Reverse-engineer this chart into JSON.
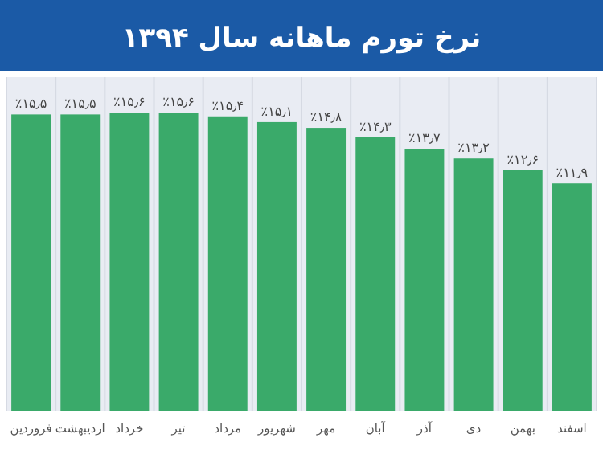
{
  "chart_data": {
    "type": "bar",
    "title": "نرخ تورم ماهانه سال ۱۳۹۴",
    "categories": [
      "فروردین",
      "اردیبهشت",
      "خرداد",
      "تیر",
      "مرداد",
      "شهریور",
      "مهر",
      "آبان",
      "آذر",
      "دی",
      "بهمن",
      "اسفند"
    ],
    "values": [
      15.5,
      15.5,
      15.6,
      15.6,
      15.4,
      15.1,
      14.8,
      14.3,
      13.7,
      13.2,
      12.6,
      11.9
    ],
    "value_labels": [
      "٪۱۵٫۵",
      "٪۱۵٫۵",
      "٪۱۵٫۶",
      "٪۱۵٫۶",
      "٪۱۵٫۴",
      "٪۱۵٫۱",
      "٪۱۴٫۸",
      "٪۱۴٫۳",
      "٪۱۳٫۷",
      "٪۱۳٫۲",
      "٪۱۲٫۶",
      "٪۱۱٫۹"
    ],
    "color": "#3aaa6a",
    "grid": "x"
  }
}
